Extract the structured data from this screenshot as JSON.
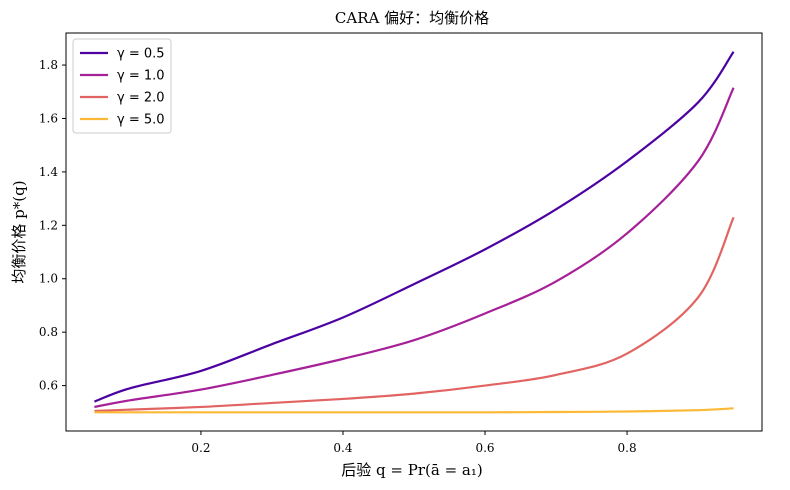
{
  "chart_data": {
    "type": "line",
    "title": "CARA 偏好：均衡价格",
    "xlabel": "后验 q = Pr(ā = a₁)",
    "ylabel": "均衡价格 p*(q)",
    "xlim": [
      0.01,
      0.99
    ],
    "ylim": [
      0.43,
      1.92
    ],
    "x_ticks": [
      0.2,
      0.4,
      0.6,
      0.8
    ],
    "x_tick_labels": [
      "0.2",
      "0.4",
      "0.6",
      "0.8"
    ],
    "y_ticks": [
      0.6,
      0.8,
      1.0,
      1.2,
      1.4,
      1.6,
      1.8
    ],
    "y_tick_labels": [
      "0.6",
      "0.8",
      "1.0",
      "1.2",
      "1.4",
      "1.6",
      "1.8"
    ],
    "grid": false,
    "legend_position": "top-left",
    "x": [
      0.05,
      0.1,
      0.2,
      0.3,
      0.4,
      0.5,
      0.6,
      0.7,
      0.8,
      0.9,
      0.95
    ],
    "series": [
      {
        "name": "γ = 0.5",
        "color": "#4c02a1",
        "values": [
          0.54,
          0.59,
          0.655,
          0.755,
          0.855,
          0.98,
          1.11,
          1.26,
          1.44,
          1.66,
          1.85
        ]
      },
      {
        "name": "γ = 1.0",
        "color": "#a62098",
        "values": [
          0.52,
          0.545,
          0.585,
          0.64,
          0.7,
          0.77,
          0.87,
          0.99,
          1.17,
          1.44,
          1.715
        ]
      },
      {
        "name": "γ = 2.0",
        "color": "#e16462",
        "values": [
          0.505,
          0.51,
          0.52,
          0.535,
          0.55,
          0.57,
          0.6,
          0.64,
          0.72,
          0.93,
          1.23
        ]
      },
      {
        "name": "γ = 5.0",
        "color": "#fcb937",
        "values": [
          0.5,
          0.5,
          0.5,
          0.5,
          0.5,
          0.5,
          0.5,
          0.501,
          0.503,
          0.508,
          0.515
        ]
      }
    ]
  }
}
